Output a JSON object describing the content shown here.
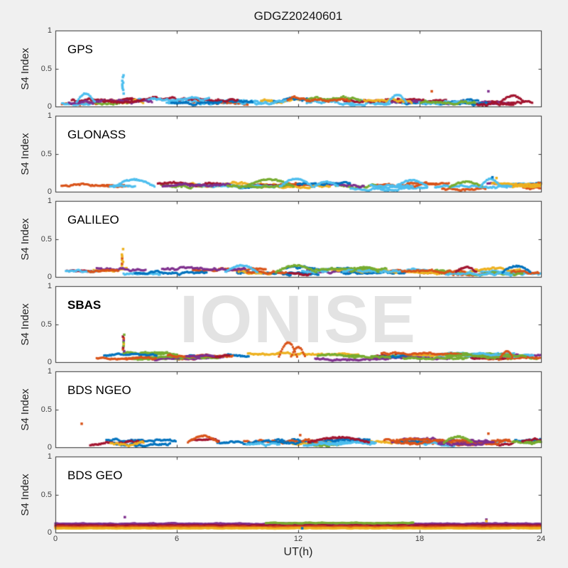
{
  "figure": {
    "background": "#f0f0f0",
    "axis_color": "#333333",
    "tick_label_color": "#404040",
    "watermark_color": "#e3e3e3"
  },
  "chart_data": {
    "type": "scatter",
    "title": "GDGZ20240601",
    "xlabel": "UT(h)",
    "ylabel": "S4 Index",
    "xlim": [
      0,
      24
    ],
    "ylim": [
      0,
      1
    ],
    "xticks": [
      0,
      6,
      12,
      18,
      24
    ],
    "yticks": [
      0,
      0.5,
      1
    ],
    "grid": false,
    "legend": "none",
    "watermark": "IONISE",
    "palette": {
      "blue": "#0072BD",
      "orange": "#D95319",
      "yellow": "#EDB120",
      "purple": "#7E2F8E",
      "green": "#77AC30",
      "cyan": "#4DBEEE",
      "darkred": "#A2142F"
    },
    "panels": [
      {
        "label": "GPS",
        "bold": false,
        "seed": 101,
        "band": {
          "base": 0.065,
          "amp": 0.05,
          "max": 0.19
        },
        "segments": 34,
        "colors": [
          "cyan",
          "darkred",
          "blue",
          "cyan",
          "orange",
          "purple",
          "darkred",
          "yellow",
          "cyan",
          "green",
          "blue",
          "darkred"
        ],
        "bumps": [
          {
            "x": 1.5,
            "w": 0.9,
            "peak": 0.17,
            "color": "cyan"
          },
          {
            "x": 16.9,
            "w": 0.9,
            "peak": 0.15,
            "color": "cyan"
          },
          {
            "x": 22.6,
            "w": 1.2,
            "peak": 0.14,
            "color": "darkred"
          }
        ],
        "spikes": [
          {
            "x": 3.34,
            "from": 0.17,
            "to": 0.43,
            "colors": [
              "cyan"
            ]
          }
        ],
        "dots": [
          {
            "x": 18.6,
            "y": 0.2,
            "color": "orange"
          },
          {
            "x": 21.4,
            "y": 0.2,
            "color": "purple"
          }
        ],
        "bands": []
      },
      {
        "label": "GLONASS",
        "bold": false,
        "seed": 202,
        "band": {
          "base": 0.075,
          "amp": 0.04,
          "max": 0.2
        },
        "segments": 32,
        "colors": [
          "orange",
          "cyan",
          "yellow",
          "purple",
          "green",
          "orange",
          "blue",
          "cyan",
          "darkred",
          "yellow",
          "orange",
          "cyan"
        ],
        "bumps": [
          {
            "x": 3.9,
            "w": 2.0,
            "peak": 0.16,
            "color": "cyan"
          },
          {
            "x": 10.6,
            "w": 2.4,
            "peak": 0.16,
            "color": "green"
          },
          {
            "x": 11.9,
            "w": 1.6,
            "peak": 0.17,
            "color": "cyan"
          },
          {
            "x": 13.4,
            "w": 1.2,
            "peak": 0.13,
            "color": "cyan"
          },
          {
            "x": 17.6,
            "w": 1.6,
            "peak": 0.15,
            "color": "cyan"
          },
          {
            "x": 20.3,
            "w": 1.6,
            "peak": 0.13,
            "color": "green"
          },
          {
            "x": 21.5,
            "w": 1.0,
            "peak": 0.17,
            "color": "cyan"
          }
        ],
        "spikes": [],
        "dots": [
          {
            "x": 21.6,
            "y": 0.19,
            "color": "blue"
          },
          {
            "x": 21.8,
            "y": 0.18,
            "color": "yellow"
          }
        ],
        "bands": []
      },
      {
        "label": "GALILEO",
        "bold": false,
        "seed": 303,
        "band": {
          "base": 0.07,
          "amp": 0.04,
          "max": 0.16
        },
        "segments": 32,
        "colors": [
          "cyan",
          "orange",
          "yellow",
          "blue",
          "purple",
          "green",
          "cyan",
          "orange",
          "darkred",
          "blue",
          "yellow",
          "cyan"
        ],
        "bumps": [
          {
            "x": 9.2,
            "w": 1.6,
            "peak": 0.15,
            "color": "cyan"
          },
          {
            "x": 11.9,
            "w": 2.0,
            "peak": 0.15,
            "color": "green"
          },
          {
            "x": 15.3,
            "w": 1.4,
            "peak": 0.13,
            "color": "green"
          },
          {
            "x": 20.3,
            "w": 1.0,
            "peak": 0.13,
            "color": "darkred"
          },
          {
            "x": 22.8,
            "w": 1.4,
            "peak": 0.14,
            "color": "blue"
          }
        ],
        "spikes": [
          {
            "x": 3.32,
            "from": 0.15,
            "to": 0.37,
            "colors": [
              "yellow",
              "orange",
              "yellow"
            ]
          }
        ],
        "dots": [],
        "bands": []
      },
      {
        "label": "SBAS",
        "bold": true,
        "seed": 404,
        "band": {
          "base": 0.075,
          "amp": 0.03,
          "max": 0.13
        },
        "segments": 36,
        "colors": [
          "green",
          "purple",
          "orange",
          "blue",
          "yellow",
          "green",
          "darkred",
          "cyan",
          "green",
          "purple",
          "orange",
          "green"
        ],
        "bumps": [
          {
            "x": 11.5,
            "w": 0.9,
            "peak": 0.26,
            "color": "orange"
          },
          {
            "x": 12.0,
            "w": 0.7,
            "peak": 0.2,
            "color": "orange"
          },
          {
            "x": 22.3,
            "w": 0.6,
            "peak": 0.14,
            "color": "orange"
          }
        ],
        "spikes": [
          {
            "x": 3.37,
            "from": 0.12,
            "to": 0.4,
            "colors": [
              "green",
              "purple",
              "orange",
              "darkred",
              "green",
              "yellow"
            ]
          }
        ],
        "dots": [],
        "bands": []
      },
      {
        "label": "BDS NGEO",
        "bold": false,
        "seed": 505,
        "band": {
          "base": 0.07,
          "amp": 0.045,
          "max": 0.16
        },
        "segments": 34,
        "colors": [
          "cyan",
          "blue",
          "orange",
          "darkred",
          "yellow",
          "blue",
          "green",
          "orange",
          "cyan",
          "purple",
          "darkred",
          "blue"
        ],
        "bumps": [
          {
            "x": 7.3,
            "w": 1.5,
            "peak": 0.15,
            "color": "orange"
          },
          {
            "x": 14.0,
            "w": 3.0,
            "peak": 0.13,
            "color": "darkred"
          },
          {
            "x": 19.9,
            "w": 1.4,
            "peak": 0.14,
            "color": "green"
          }
        ],
        "spikes": [],
        "dots": [
          {
            "x": 1.3,
            "y": 0.31,
            "color": "orange"
          },
          {
            "x": 12.1,
            "y": 0.16,
            "color": "orange"
          },
          {
            "x": 21.4,
            "y": 0.18,
            "color": "orange"
          }
        ],
        "bands": []
      },
      {
        "label": "BDS GEO",
        "bold": false,
        "seed": 606,
        "band": {
          "base": 0.08,
          "amp": 0.02,
          "max": 0.15
        },
        "segments": 0,
        "colors": [
          "purple",
          "orange",
          "yellow"
        ],
        "bumps": [],
        "spikes": [
          {
            "x": 3.42,
            "from": 0.13,
            "to": 0.21,
            "colors": [
              "purple"
            ]
          }
        ],
        "dots": [
          {
            "x": 21.3,
            "y": 0.17,
            "color": "purple"
          },
          {
            "x": 21.3,
            "y": 0.15,
            "color": "yellow"
          },
          {
            "x": 12.2,
            "y": 0.055,
            "color": "blue"
          }
        ],
        "bands": [
          {
            "color": "purple",
            "base": 0.115,
            "amp": 0.013,
            "from": 0,
            "to": 24
          },
          {
            "color": "darkred",
            "base": 0.093,
            "amp": 0.008,
            "from": 0,
            "to": 24
          },
          {
            "color": "orange",
            "base": 0.074,
            "amp": 0.011,
            "from": 0,
            "to": 24
          },
          {
            "color": "yellow",
            "base": 0.056,
            "amp": 0.008,
            "from": 0,
            "to": 24
          },
          {
            "color": "green",
            "base": 0.125,
            "amp": 0.01,
            "from": 10.4,
            "to": 17.7
          }
        ]
      }
    ]
  }
}
